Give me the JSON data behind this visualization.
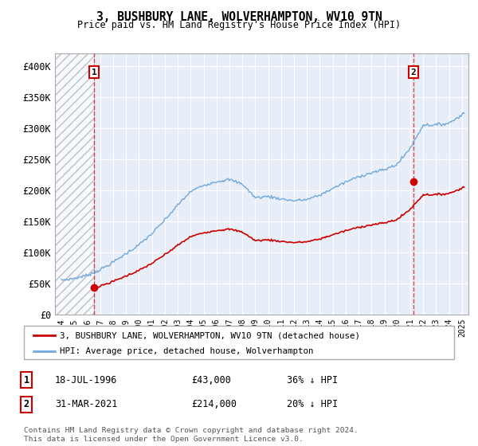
{
  "title": "3, BUSHBURY LANE, WOLVERHAMPTON, WV10 9TN",
  "subtitle": "Price paid vs. HM Land Registry's House Price Index (HPI)",
  "legend_line1": "3, BUSHBURY LANE, WOLVERHAMPTON, WV10 9TN (detached house)",
  "legend_line2": "HPI: Average price, detached house, Wolverhampton",
  "footer": "Contains HM Land Registry data © Crown copyright and database right 2024.\nThis data is licensed under the Open Government Licence v3.0.",
  "sale1_date": 1996.54,
  "sale1_price": 43000,
  "sale1_label": "1",
  "sale1_info": "18-JUL-1996",
  "sale1_price_str": "£43,000",
  "sale1_hpi": "36% ↓ HPI",
  "sale2_date": 2021.25,
  "sale2_price": 214000,
  "sale2_label": "2",
  "sale2_info": "31-MAR-2021",
  "sale2_price_str": "£214,000",
  "sale2_hpi": "20% ↓ HPI",
  "ylim": [
    0,
    420000
  ],
  "xlim": [
    1993.5,
    2025.5
  ],
  "yticks": [
    0,
    50000,
    100000,
    150000,
    200000,
    250000,
    300000,
    350000,
    400000
  ],
  "ytick_labels": [
    "£0",
    "£50K",
    "£100K",
    "£150K",
    "£200K",
    "£250K",
    "£300K",
    "£350K",
    "£400K"
  ],
  "hpi_color": "#6fa8dc",
  "price_color": "#cc0000",
  "background_color": "#e8eef8"
}
